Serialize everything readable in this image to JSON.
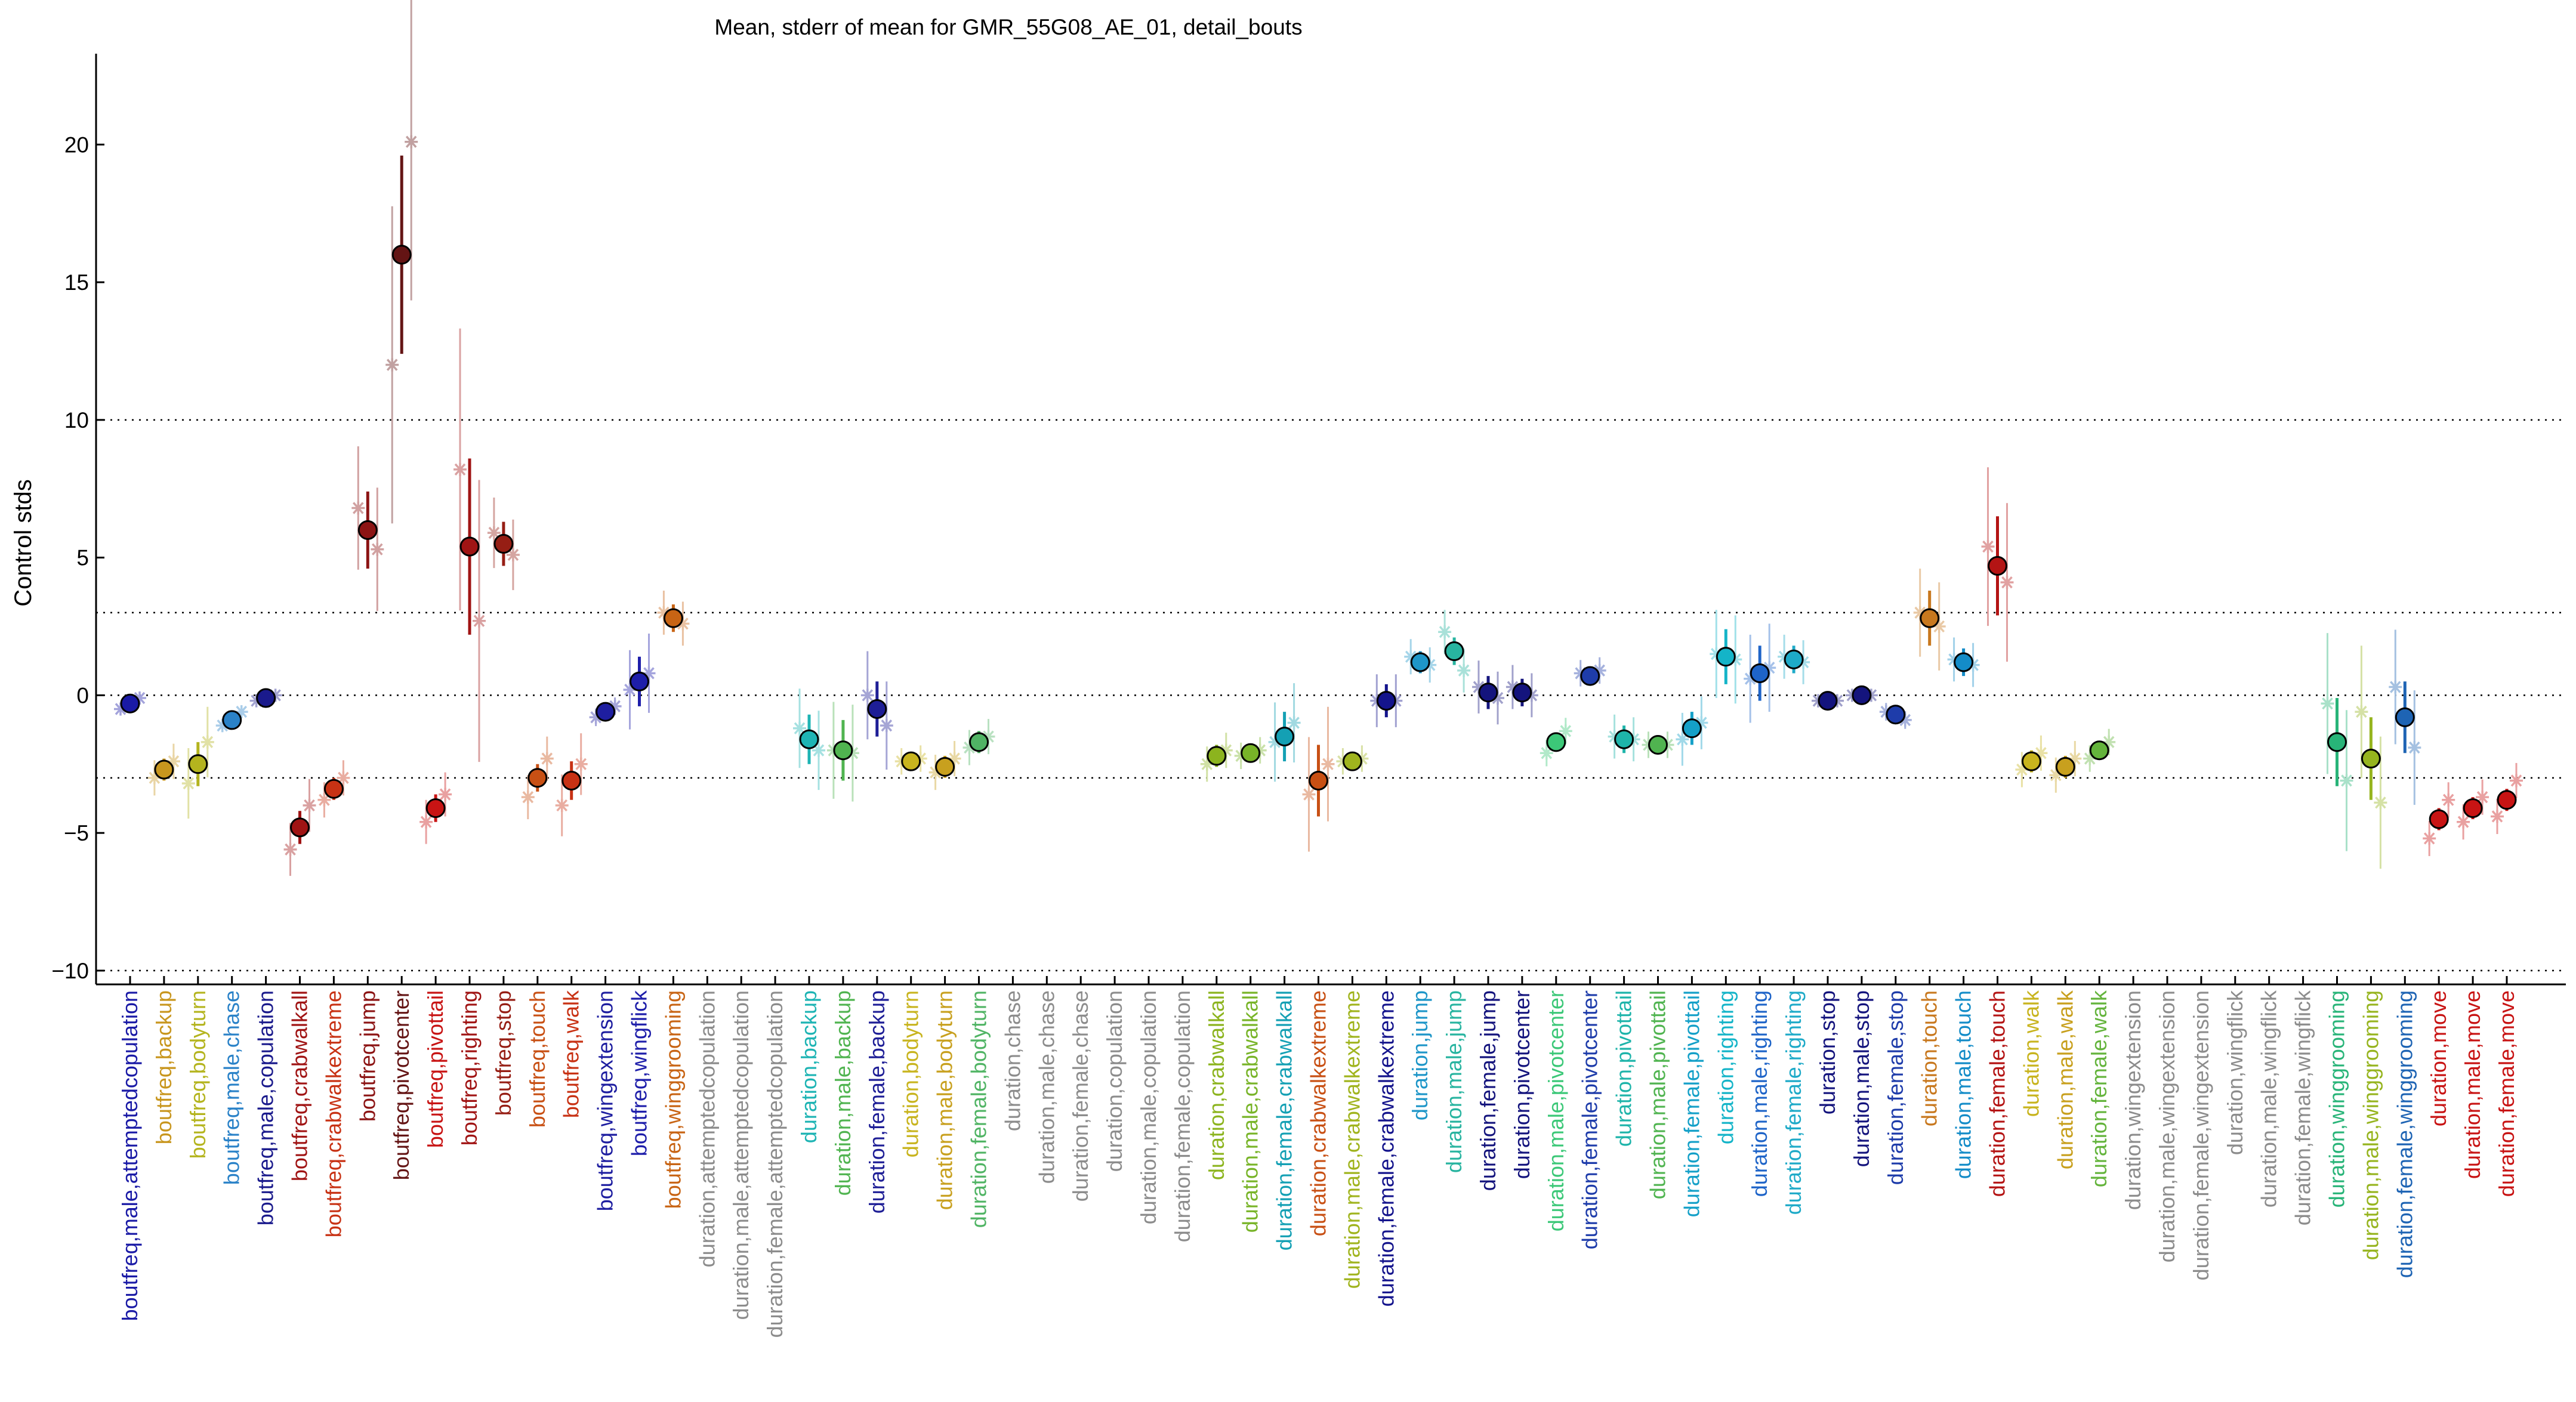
{
  "chart_data": {
    "type": "scatter",
    "title": "Mean, stderr of mean for GMR_55G08_AE_01, detail_bouts",
    "ylabel": "Control stds",
    "xlabel": "",
    "ylim": [
      -10.5,
      23.3
    ],
    "yticks": [
      -10,
      -5,
      0,
      5,
      10,
      15,
      20
    ],
    "ytick_labels": [
      "−10",
      "−5",
      "0",
      "5",
      "10",
      "15",
      "20"
    ],
    "reference_lines": [
      -10,
      -3,
      0,
      3,
      10
    ],
    "grid": false,
    "legend": "none",
    "categories": [
      {
        "label": "boutfreq,male,attemptedcopulation",
        "color": "#1a1aa6",
        "mean": -0.3,
        "err": 0.1,
        "g": [
          -0.5,
          -0.1
        ]
      },
      {
        "label": "boutfreq,backup",
        "color": "#c8961e",
        "mean": -2.7,
        "err": 0.4,
        "g": [
          -3.0,
          -2.4
        ]
      },
      {
        "label": "boutfreq,bodyturn",
        "color": "#b4b41e",
        "mean": -2.5,
        "err": 0.8,
        "g": [
          -3.2,
          -1.7
        ]
      },
      {
        "label": "boutfreq,male,chase",
        "color": "#2a82c8",
        "mean": -0.9,
        "err": 0.15,
        "g": [
          -1.1,
          -0.6
        ]
      },
      {
        "label": "boutfreq,male,copulation",
        "color": "#1a1a8c",
        "mean": -0.1,
        "err": 0.1,
        "g": [
          -0.2,
          0.0
        ]
      },
      {
        "label": "boutfreq,crabwalkall",
        "color": "#a01414",
        "mean": -4.8,
        "err": 0.6,
        "g": [
          -5.6,
          -4.0
        ]
      },
      {
        "label": "boutfreq,crabwalkextreme",
        "color": "#c83214",
        "mean": -3.4,
        "err": 0.4,
        "g": [
          -3.8,
          -3.0
        ]
      },
      {
        "label": "boutfreq,jump",
        "color": "#8c1414",
        "mean": 6.0,
        "err": 1.4,
        "g": [
          6.8,
          5.3
        ]
      },
      {
        "label": "boutfreq,pivotcenter",
        "color": "#641414",
        "mean": 16.0,
        "err": 3.6,
        "g": [
          12.0,
          20.1
        ]
      },
      {
        "label": "boutfreq,pivottail",
        "color": "#c81414",
        "mean": -4.1,
        "err": 0.5,
        "g": [
          -4.6,
          -3.6
        ]
      },
      {
        "label": "boutfreq,righting",
        "color": "#a01414",
        "mean": 5.4,
        "err": 3.2,
        "g": [
          8.2,
          2.7
        ]
      },
      {
        "label": "boutfreq,stop",
        "color": "#961e14",
        "mean": 5.5,
        "err": 0.8,
        "g": [
          5.9,
          5.1
        ]
      },
      {
        "label": "boutfreq,touch",
        "color": "#c85014",
        "mean": -3.0,
        "err": 0.5,
        "g": [
          -3.7,
          -2.3
        ]
      },
      {
        "label": "boutfreq,walk",
        "color": "#c83214",
        "mean": -3.1,
        "err": 0.7,
        "g": [
          -4.0,
          -2.5
        ]
      },
      {
        "label": "boutfreq,wingextension",
        "color": "#1e1ea0",
        "mean": -0.6,
        "err": 0.2,
        "g": [
          -0.8,
          -0.4
        ]
      },
      {
        "label": "boutfreq,wingflick",
        "color": "#1e1eaa",
        "mean": 0.5,
        "err": 0.9,
        "g": [
          0.2,
          0.8
        ]
      },
      {
        "label": "boutfreq,winggrooming",
        "color": "#c86414",
        "mean": 2.8,
        "err": 0.5,
        "g": [
          3.0,
          2.6
        ]
      },
      {
        "label": "duration,attemptedcopulation",
        "color": "#8c8c8c"
      },
      {
        "label": "duration,male,attemptedcopulation",
        "color": "#8c8c8c"
      },
      {
        "label": "duration,female,attemptedcopulation",
        "color": "#8c8c8c"
      },
      {
        "label": "duration,backup",
        "color": "#1eb4b4",
        "mean": -1.6,
        "err": 0.9,
        "g": [
          -1.2,
          -2.0
        ]
      },
      {
        "label": "duration,male,backup",
        "color": "#50b450",
        "mean": -2.0,
        "err": 1.1,
        "g": [
          -2.0,
          -2.1
        ]
      },
      {
        "label": "duration,female,backup",
        "color": "#1e1e96",
        "mean": -0.5,
        "err": 1.0,
        "g": [
          0.0,
          -1.1
        ]
      },
      {
        "label": "duration,bodyturn",
        "color": "#c8b41e",
        "mean": -2.4,
        "err": 0.3,
        "g": [
          -2.4,
          -2.3
        ]
      },
      {
        "label": "duration,male,bodyturn",
        "color": "#c8a01e",
        "mean": -2.6,
        "err": 0.4,
        "g": [
          -2.8,
          -2.3
        ]
      },
      {
        "label": "duration,female,bodyturn",
        "color": "#50b464",
        "mean": -1.7,
        "err": 0.4,
        "g": [
          -1.9,
          -1.5
        ]
      },
      {
        "label": "duration,chase",
        "color": "#8c8c8c"
      },
      {
        "label": "duration,male,chase",
        "color": "#8c8c8c"
      },
      {
        "label": "duration,female,chase",
        "color": "#8c8c8c"
      },
      {
        "label": "duration,copulation",
        "color": "#8c8c8c"
      },
      {
        "label": "duration,male,copulation",
        "color": "#8c8c8c"
      },
      {
        "label": "duration,female,copulation",
        "color": "#8c8c8c"
      },
      {
        "label": "duration,crabwalkall",
        "color": "#8cb41e",
        "mean": -2.2,
        "err": 0.4,
        "g": [
          -2.5,
          -2.0
        ]
      },
      {
        "label": "duration,male,crabwalkall",
        "color": "#78b428",
        "mean": -2.1,
        "err": 0.3,
        "g": [
          -2.2,
          -2.0
        ]
      },
      {
        "label": "duration,female,crabwalkall",
        "color": "#14a0b4",
        "mean": -1.5,
        "err": 0.9,
        "g": [
          -1.7,
          -1.0
        ]
      },
      {
        "label": "duration,crabwalkextreme",
        "color": "#c85014",
        "mean": -3.1,
        "err": 1.3,
        "g": [
          -3.6,
          -2.5
        ]
      },
      {
        "label": "duration,male,crabwalkextreme",
        "color": "#a0b41e",
        "mean": -2.4,
        "err": 0.3,
        "g": [
          -2.4,
          -2.3
        ]
      },
      {
        "label": "duration,female,crabwalkextreme",
        "color": "#14148c",
        "mean": -0.2,
        "err": 0.6,
        "g": [
          -0.2,
          -0.2
        ]
      },
      {
        "label": "duration,jump",
        "color": "#1e96c8",
        "mean": 1.2,
        "err": 0.4,
        "g": [
          1.4,
          1.1
        ]
      },
      {
        "label": "duration,male,jump",
        "color": "#28b4a0",
        "mean": 1.6,
        "err": 0.5,
        "g": [
          2.3,
          0.9
        ]
      },
      {
        "label": "duration,female,jump",
        "color": "#14147d",
        "mean": 0.1,
        "err": 0.6,
        "g": [
          0.3,
          -0.1
        ]
      },
      {
        "label": "duration,pivotcenter",
        "color": "#14147d",
        "mean": 0.1,
        "err": 0.5,
        "g": [
          0.3,
          0.0
        ]
      },
      {
        "label": "duration,male,pivotcenter",
        "color": "#3cc878",
        "mean": -1.7,
        "err": 0.3,
        "g": [
          -2.1,
          -1.3
        ]
      },
      {
        "label": "duration,female,pivotcenter",
        "color": "#1e3caa",
        "mean": 0.7,
        "err": 0.3,
        "g": [
          0.8,
          0.9
        ]
      },
      {
        "label": "duration,pivottail",
        "color": "#1eb4aa",
        "mean": -1.6,
        "err": 0.5,
        "g": [
          -1.5,
          -1.6
        ]
      },
      {
        "label": "duration,male,pivottail",
        "color": "#50b450",
        "mean": -1.8,
        "err": 0.3,
        "g": [
          -1.8,
          -1.8
        ]
      },
      {
        "label": "duration,female,pivottail",
        "color": "#14a0c8",
        "mean": -1.2,
        "err": 0.6,
        "g": [
          -1.6,
          -1.0
        ]
      },
      {
        "label": "duration,righting",
        "color": "#14b4c8",
        "mean": 1.4,
        "err": 1.0,
        "g": [
          1.5,
          1.3
        ]
      },
      {
        "label": "duration,male,righting",
        "color": "#1e64c8",
        "mean": 0.8,
        "err": 1.0,
        "g": [
          0.6,
          1.0
        ]
      },
      {
        "label": "duration,female,righting",
        "color": "#1eaac8",
        "mean": 1.3,
        "err": 0.5,
        "g": [
          1.4,
          1.2
        ]
      },
      {
        "label": "duration,stop",
        "color": "#14147d",
        "mean": -0.2,
        "err": 0.15,
        "g": [
          -0.2,
          -0.2
        ]
      },
      {
        "label": "duration,male,stop",
        "color": "#14147d",
        "mean": 0.0,
        "err": 0.1,
        "g": [
          0.0,
          0.0
        ]
      },
      {
        "label": "duration,female,stop",
        "color": "#1e3caa",
        "mean": -0.7,
        "err": 0.2,
        "g": [
          -0.6,
          -0.9
        ]
      },
      {
        "label": "duration,touch",
        "color": "#c8781e",
        "mean": 2.8,
        "err": 1.0,
        "g": [
          3.0,
          2.5
        ]
      },
      {
        "label": "duration,male,touch",
        "color": "#148cc8",
        "mean": 1.2,
        "err": 0.5,
        "g": [
          1.3,
          1.1
        ]
      },
      {
        "label": "duration,female,touch",
        "color": "#b41414",
        "mean": 4.7,
        "err": 1.8,
        "g": [
          5.4,
          4.1
        ]
      },
      {
        "label": "duration,walk",
        "color": "#c8b41e",
        "mean": -2.4,
        "err": 0.4,
        "g": [
          -2.7,
          -2.1
        ]
      },
      {
        "label": "duration,male,walk",
        "color": "#c8a01e",
        "mean": -2.6,
        "err": 0.4,
        "g": [
          -2.9,
          -2.3
        ]
      },
      {
        "label": "duration,female,walk",
        "color": "#64b43c",
        "mean": -2.0,
        "err": 0.3,
        "g": [
          -2.3,
          -1.7
        ]
      },
      {
        "label": "duration,wingextension",
        "color": "#8c8c8c"
      },
      {
        "label": "duration,male,wingextension",
        "color": "#8c8c8c"
      },
      {
        "label": "duration,female,wingextension",
        "color": "#8c8c8c"
      },
      {
        "label": "duration,wingflick",
        "color": "#8c8c8c"
      },
      {
        "label": "duration,male,wingflick",
        "color": "#8c8c8c"
      },
      {
        "label": "duration,female,wingflick",
        "color": "#8c8c8c"
      },
      {
        "label": "duration,winggrooming",
        "color": "#28b478",
        "mean": -1.7,
        "err": 1.6,
        "g": [
          -0.3,
          -3.1
        ]
      },
      {
        "label": "duration,male,winggrooming",
        "color": "#96b41e",
        "mean": -2.3,
        "err": 1.5,
        "g": [
          -0.6,
          -3.9
        ]
      },
      {
        "label": "duration,female,winggrooming",
        "color": "#1e64b4",
        "mean": -0.8,
        "err": 1.3,
        "g": [
          0.3,
          -1.9
        ]
      },
      {
        "label": "duration,move",
        "color": "#c81414",
        "mean": -4.5,
        "err": 0.4,
        "g": [
          -5.2,
          -3.8
        ]
      },
      {
        "label": "duration,male,move",
        "color": "#c81414",
        "mean": -4.1,
        "err": 0.4,
        "g": [
          -4.6,
          -3.7
        ]
      },
      {
        "label": "duration,female,move",
        "color": "#c81414",
        "mean": -3.8,
        "err": 0.4,
        "g": [
          -4.4,
          -3.1
        ]
      }
    ]
  }
}
